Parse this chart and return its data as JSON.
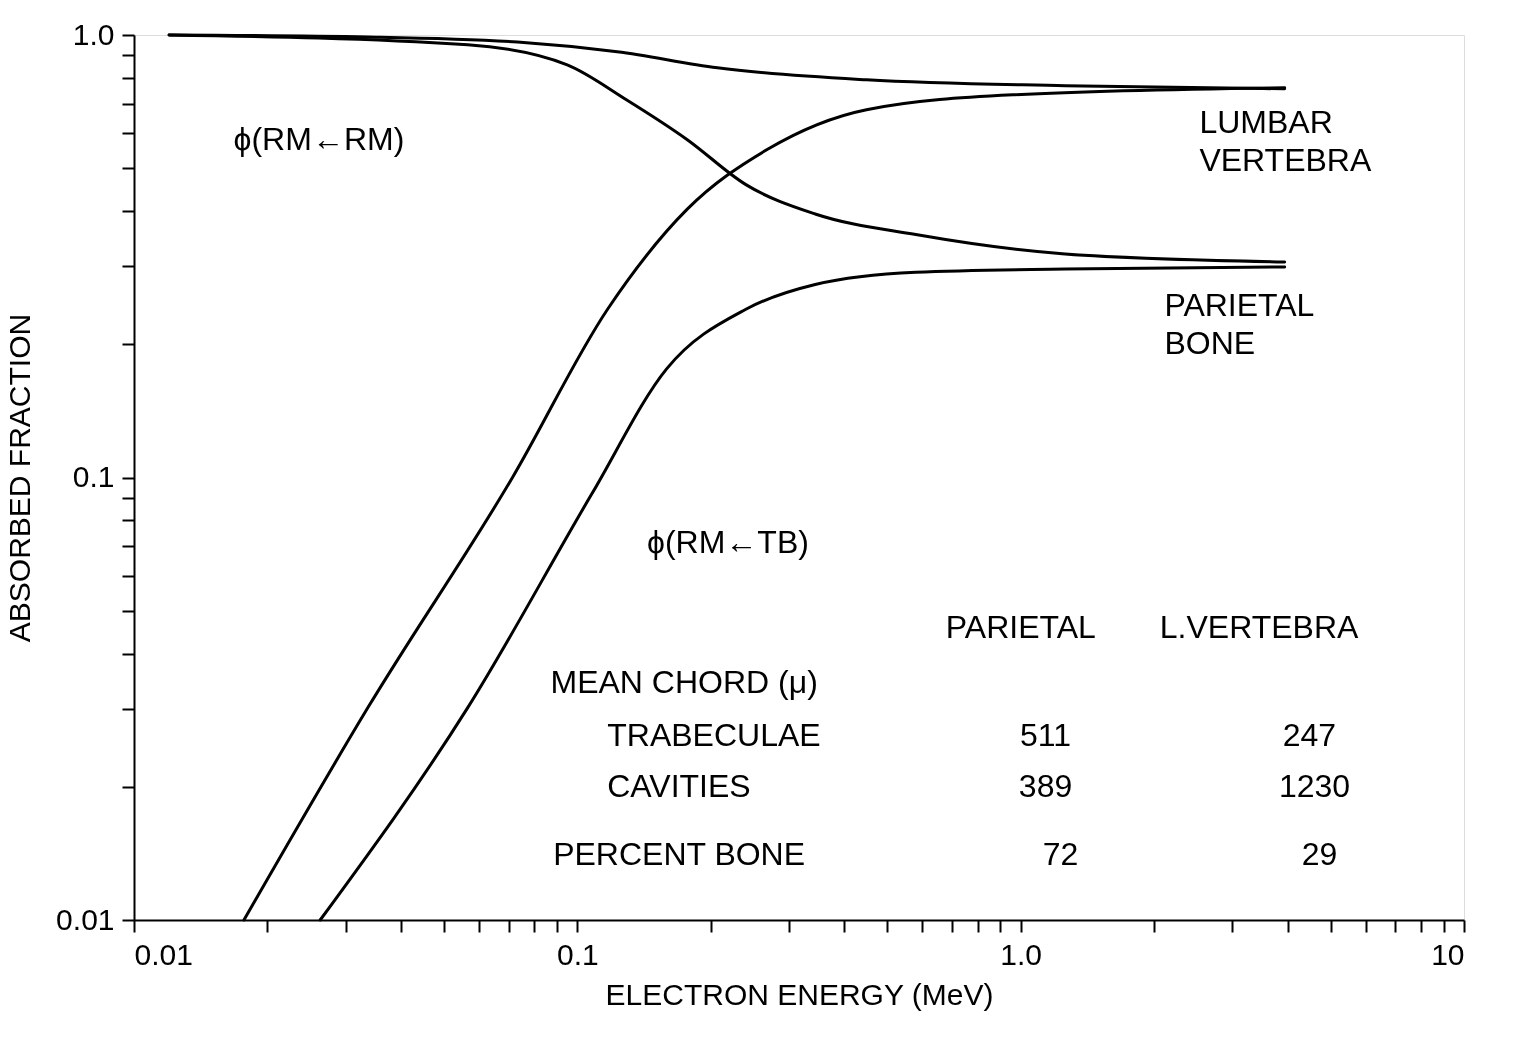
{
  "chart_data": {
    "type": "line",
    "xlabel": "ELECTRON ENERGY (MeV)",
    "ylabel": "ABSORBED FRACTION",
    "log": "xy",
    "grid": false,
    "legend": false,
    "marker": "none",
    "line_style": "solid",
    "xlim": [
      0.01,
      10
    ],
    "ylim": [
      0.01,
      1.0
    ],
    "xticks": [
      {
        "value": 0.01,
        "label": "0.01"
      },
      {
        "value": 0.02,
        "label": null
      },
      {
        "value": 0.03,
        "label": null
      },
      {
        "value": 0.04,
        "label": null
      },
      {
        "value": 0.05,
        "label": null
      },
      {
        "value": 0.06,
        "label": null
      },
      {
        "value": 0.07,
        "label": null
      },
      {
        "value": 0.08,
        "label": null
      },
      {
        "value": 0.09,
        "label": null
      },
      {
        "value": 0.1,
        "label": "0.1"
      },
      {
        "value": 0.2,
        "label": null
      },
      {
        "value": 0.3,
        "label": null
      },
      {
        "value": 0.4,
        "label": null
      },
      {
        "value": 0.5,
        "label": null
      },
      {
        "value": 0.6,
        "label": null
      },
      {
        "value": 0.7,
        "label": null
      },
      {
        "value": 0.8,
        "label": null
      },
      {
        "value": 0.9,
        "label": null
      },
      {
        "value": 1,
        "label": "1.0"
      },
      {
        "value": 2,
        "label": null
      },
      {
        "value": 3,
        "label": null
      },
      {
        "value": 4,
        "label": null
      },
      {
        "value": 5,
        "label": null
      },
      {
        "value": 6,
        "label": null
      },
      {
        "value": 7,
        "label": null
      },
      {
        "value": 8,
        "label": null
      },
      {
        "value": 9,
        "label": null
      },
      {
        "value": 10,
        "label": "10"
      }
    ],
    "yticks": [
      {
        "value": 0.01,
        "label": "0.01"
      },
      {
        "value": 0.02,
        "label": null
      },
      {
        "value": 0.03,
        "label": null
      },
      {
        "value": 0.04,
        "label": null
      },
      {
        "value": 0.05,
        "label": null
      },
      {
        "value": 0.06,
        "label": null
      },
      {
        "value": 0.07,
        "label": null
      },
      {
        "value": 0.08,
        "label": null
      },
      {
        "value": 0.09,
        "label": null
      },
      {
        "value": 0.1,
        "label": "0.1"
      },
      {
        "value": 0.2,
        "label": null
      },
      {
        "value": 0.3,
        "label": null
      },
      {
        "value": 0.4,
        "label": null
      },
      {
        "value": 0.5,
        "label": null
      },
      {
        "value": 0.6,
        "label": null
      },
      {
        "value": 0.7,
        "label": null
      },
      {
        "value": 0.8,
        "label": null
      },
      {
        "value": 0.9,
        "label": null
      },
      {
        "value": 1,
        "label": "1.0"
      }
    ],
    "series": [
      {
        "color": "#000000",
        "x": [
          0.012,
          0.0337,
          0.0733,
          0.123,
          0.207,
          0.449,
          1.26,
          3.94
        ],
        "values": [
          1.0,
          0.99,
          0.964,
          0.916,
          0.843,
          0.792,
          0.768,
          0.756
        ]
      },
      {
        "color": "#000000",
        "x": [
          0.012,
          0.0566,
          0.0949,
          0.129,
          0.177,
          0.24,
          0.344,
          0.58,
          1.26,
          3.94
        ],
        "values": [
          1.0,
          0.95,
          0.856,
          0.714,
          0.58,
          0.459,
          0.394,
          0.354,
          0.32,
          0.307
        ]
      },
      {
        "color": "#000000",
        "x": [
          0.0177,
          0.0337,
          0.0714,
          0.117,
          0.177,
          0.268,
          0.449,
          0.97,
          3.94
        ],
        "values": [
          0.01,
          0.0302,
          0.1,
          0.24,
          0.404,
          0.551,
          0.678,
          0.733,
          0.76
        ]
      },
      {
        "color": "#000000",
        "x": [
          0.0263,
          0.0566,
          0.108,
          0.159,
          0.24,
          0.344,
          0.58,
          1.26,
          3.94
        ],
        "values": [
          0.01,
          0.0302,
          0.0921,
          0.176,
          0.24,
          0.273,
          0.291,
          0.296,
          0.299
        ]
      }
    ],
    "annotations": [
      "ϕ(RM←RM)",
      "ϕ(RM←TB)",
      "LUMBAR VERTEBRA",
      "PARIETAL BONE",
      "PARIETAL",
      "L.VERTEBRA",
      "MEAN CHORD (μ)",
      "TRABECULAE",
      "511",
      "247",
      "CAVITIES",
      "389",
      "1230",
      "PERCENT BONE",
      "72",
      "29"
    ]
  }
}
